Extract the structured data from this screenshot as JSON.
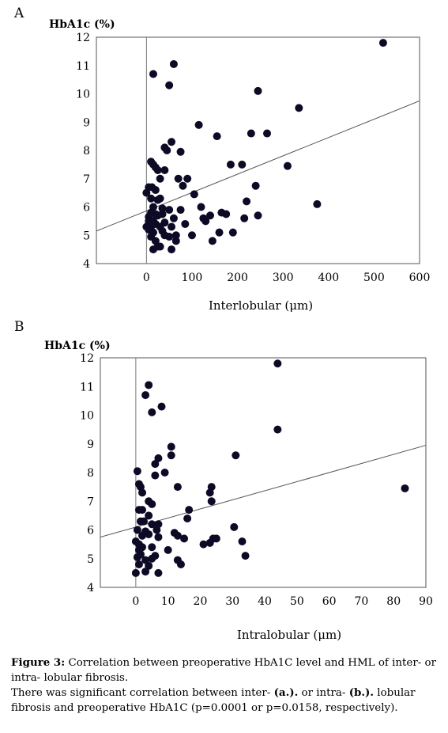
{
  "chart_data": [
    {
      "type": "scatter",
      "panel_label": "A",
      "ylabel": "HbA1c (%)",
      "xlabel": "Interlobular (μm)",
      "xlim": [
        -110,
        600
      ],
      "ylim": [
        4,
        12
      ],
      "xticks": [
        0,
        100,
        200,
        300,
        400,
        500,
        600
      ],
      "yticks": [
        4,
        5,
        6,
        7,
        8,
        9,
        10,
        11,
        12
      ],
      "trendline": {
        "x1": -110,
        "y1": 5.15,
        "x2": 600,
        "y2": 9.75
      },
      "points": [
        [
          520,
          11.8
        ],
        [
          60,
          11.05
        ],
        [
          15,
          10.7
        ],
        [
          50,
          10.3
        ],
        [
          245,
          10.1
        ],
        [
          335,
          9.5
        ],
        [
          115,
          8.9
        ],
        [
          230,
          8.6
        ],
        [
          265,
          8.6
        ],
        [
          155,
          8.5
        ],
        [
          55,
          8.3
        ],
        [
          40,
          8.1
        ],
        [
          45,
          8.0
        ],
        [
          75,
          7.95
        ],
        [
          185,
          7.5
        ],
        [
          210,
          7.5
        ],
        [
          310,
          7.45
        ],
        [
          10,
          7.6
        ],
        [
          15,
          7.5
        ],
        [
          20,
          7.4
        ],
        [
          25,
          7.3
        ],
        [
          40,
          7.3
        ],
        [
          30,
          7.0
        ],
        [
          70,
          7.0
        ],
        [
          90,
          7.0
        ],
        [
          80,
          6.75
        ],
        [
          240,
          6.75
        ],
        [
          5,
          6.7
        ],
        [
          12,
          6.7
        ],
        [
          20,
          6.6
        ],
        [
          105,
          6.45
        ],
        [
          0,
          6.5
        ],
        [
          10,
          6.3
        ],
        [
          30,
          6.3
        ],
        [
          25,
          6.25
        ],
        [
          220,
          6.2
        ],
        [
          375,
          6.1
        ],
        [
          120,
          6.0
        ],
        [
          15,
          6.0
        ],
        [
          35,
          5.95
        ],
        [
          50,
          5.9
        ],
        [
          75,
          5.9
        ],
        [
          10,
          5.8
        ],
        [
          20,
          5.75
        ],
        [
          35,
          5.75
        ],
        [
          165,
          5.8
        ],
        [
          175,
          5.75
        ],
        [
          140,
          5.7
        ],
        [
          245,
          5.7
        ],
        [
          25,
          5.7
        ],
        [
          5,
          5.65
        ],
        [
          125,
          5.6
        ],
        [
          215,
          5.6
        ],
        [
          60,
          5.6
        ],
        [
          5,
          5.5
        ],
        [
          15,
          5.5
        ],
        [
          20,
          5.4
        ],
        [
          40,
          5.45
        ],
        [
          85,
          5.4
        ],
        [
          130,
          5.5
        ],
        [
          0,
          5.3
        ],
        [
          10,
          5.3
        ],
        [
          30,
          5.3
        ],
        [
          55,
          5.3
        ],
        [
          35,
          5.15
        ],
        [
          5,
          5.2
        ],
        [
          15,
          5.1
        ],
        [
          160,
          5.1
        ],
        [
          190,
          5.1
        ],
        [
          40,
          5.0
        ],
        [
          50,
          4.95
        ],
        [
          65,
          5.0
        ],
        [
          100,
          5.0
        ],
        [
          10,
          4.95
        ],
        [
          20,
          4.8
        ],
        [
          145,
          4.8
        ],
        [
          25,
          4.6
        ],
        [
          30,
          4.6
        ],
        [
          15,
          4.5
        ],
        [
          55,
          4.5
        ],
        [
          65,
          4.8
        ]
      ]
    },
    {
      "type": "scatter",
      "panel_label": "B",
      "ylabel": "HbA1c (%)",
      "xlabel": "Intralobular (μm)",
      "xlim": [
        -11,
        90
      ],
      "ylim": [
        4,
        12
      ],
      "xticks": [
        0,
        10,
        20,
        30,
        40,
        50,
        60,
        70,
        80,
        90
      ],
      "yticks": [
        4,
        5,
        6,
        7,
        8,
        9,
        10,
        11,
        12
      ],
      "trendline": {
        "x1": -11,
        "y1": 5.75,
        "x2": 90,
        "y2": 8.95
      },
      "points": [
        [
          44,
          11.8
        ],
        [
          4,
          11.05
        ],
        [
          3,
          10.7
        ],
        [
          8,
          10.3
        ],
        [
          5,
          10.1
        ],
        [
          44,
          9.5
        ],
        [
          11,
          8.9
        ],
        [
          11,
          8.6
        ],
        [
          31,
          8.6
        ],
        [
          7,
          8.5
        ],
        [
          6,
          8.3
        ],
        [
          0.5,
          8.05
        ],
        [
          9,
          8.0
        ],
        [
          6,
          7.9
        ],
        [
          1,
          7.6
        ],
        [
          1.5,
          7.5
        ],
        [
          13,
          7.5
        ],
        [
          23.5,
          7.5
        ],
        [
          23,
          7.3
        ],
        [
          83.5,
          7.45
        ],
        [
          2,
          7.3
        ],
        [
          4,
          7.0
        ],
        [
          5,
          6.9
        ],
        [
          23.5,
          7.0
        ],
        [
          1,
          6.7
        ],
        [
          2,
          6.7
        ],
        [
          16.5,
          6.7
        ],
        [
          16,
          6.4
        ],
        [
          4,
          6.5
        ],
        [
          1.5,
          6.3
        ],
        [
          2.5,
          6.3
        ],
        [
          5,
          6.2
        ],
        [
          7,
          6.2
        ],
        [
          30.5,
          6.1
        ],
        [
          0.5,
          6.0
        ],
        [
          6.5,
          6.0
        ],
        [
          3,
          5.95
        ],
        [
          12,
          5.9
        ],
        [
          4,
          5.85
        ],
        [
          13,
          5.8
        ],
        [
          2,
          5.8
        ],
        [
          7,
          5.75
        ],
        [
          24,
          5.7
        ],
        [
          25,
          5.7
        ],
        [
          15,
          5.7
        ],
        [
          33,
          5.6
        ],
        [
          0,
          5.6
        ],
        [
          1,
          5.5
        ],
        [
          21,
          5.5
        ],
        [
          23,
          5.55
        ],
        [
          2,
          5.4
        ],
        [
          5,
          5.4
        ],
        [
          1,
          5.3
        ],
        [
          10,
          5.3
        ],
        [
          1.5,
          5.15
        ],
        [
          0.5,
          5.05
        ],
        [
          6,
          5.1
        ],
        [
          34,
          5.1
        ],
        [
          3,
          4.95
        ],
        [
          13,
          4.95
        ],
        [
          14,
          4.8
        ],
        [
          1,
          4.8
        ],
        [
          4,
          4.75
        ],
        [
          0,
          4.5
        ],
        [
          3,
          4.55
        ],
        [
          7,
          4.5
        ],
        [
          5,
          5.0
        ]
      ]
    }
  ],
  "caption": {
    "figure_label": "Figure 3:",
    "line1": " Correlation between preoperative HbA1C level and HML of inter- or intra- lobular fibrosis.",
    "line2_a": "There was significant correlation between inter- ",
    "bold_a": "(a.).",
    "line2_b": " or intra- ",
    "bold_b": "(b.).",
    "line2_c": " lobular fibrosis and preoperative HbA1C (p=0.0001 or p=0.0158, respectively)."
  }
}
